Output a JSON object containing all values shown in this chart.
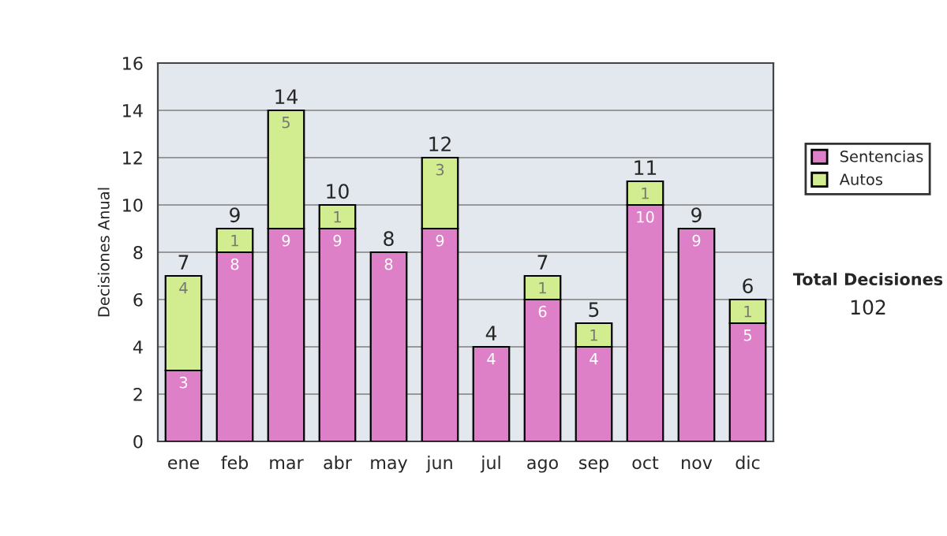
{
  "chart_data": {
    "type": "bar",
    "stacked": true,
    "ylabel": "Decisiones Anual",
    "categories": [
      "ene",
      "feb",
      "mar",
      "abr",
      "may",
      "jun",
      "jul",
      "ago",
      "sep",
      "oct",
      "nov",
      "dic"
    ],
    "series": [
      {
        "name": "Sentencias",
        "color": "#dd80c8",
        "values": [
          3,
          8,
          9,
          9,
          8,
          9,
          4,
          6,
          4,
          10,
          9,
          5
        ],
        "value_labels": [
          "3",
          "8",
          "9",
          "9",
          "8",
          "9",
          "4",
          "6",
          "4",
          "10",
          "9",
          "5"
        ]
      },
      {
        "name": "Autos",
        "color": "#d2ec90",
        "values": [
          4,
          1,
          5,
          1,
          0,
          3,
          0,
          1,
          1,
          1,
          0,
          1
        ],
        "value_labels": [
          "4",
          "1",
          "5",
          "1",
          null,
          "3",
          null,
          "1",
          "1",
          "1",
          null,
          "1"
        ]
      }
    ],
    "totals": [
      "7",
      "9",
      "14",
      "10",
      "8",
      "12",
      "4",
      "7",
      "5",
      "11",
      "9",
      "6"
    ],
    "ylim": [
      0,
      16
    ],
    "yticks": [
      0,
      2,
      4,
      6,
      8,
      10,
      12,
      14,
      16
    ],
    "grid": "y",
    "legend": "right",
    "annotations": [
      "Total Decisiones",
      "102"
    ]
  }
}
